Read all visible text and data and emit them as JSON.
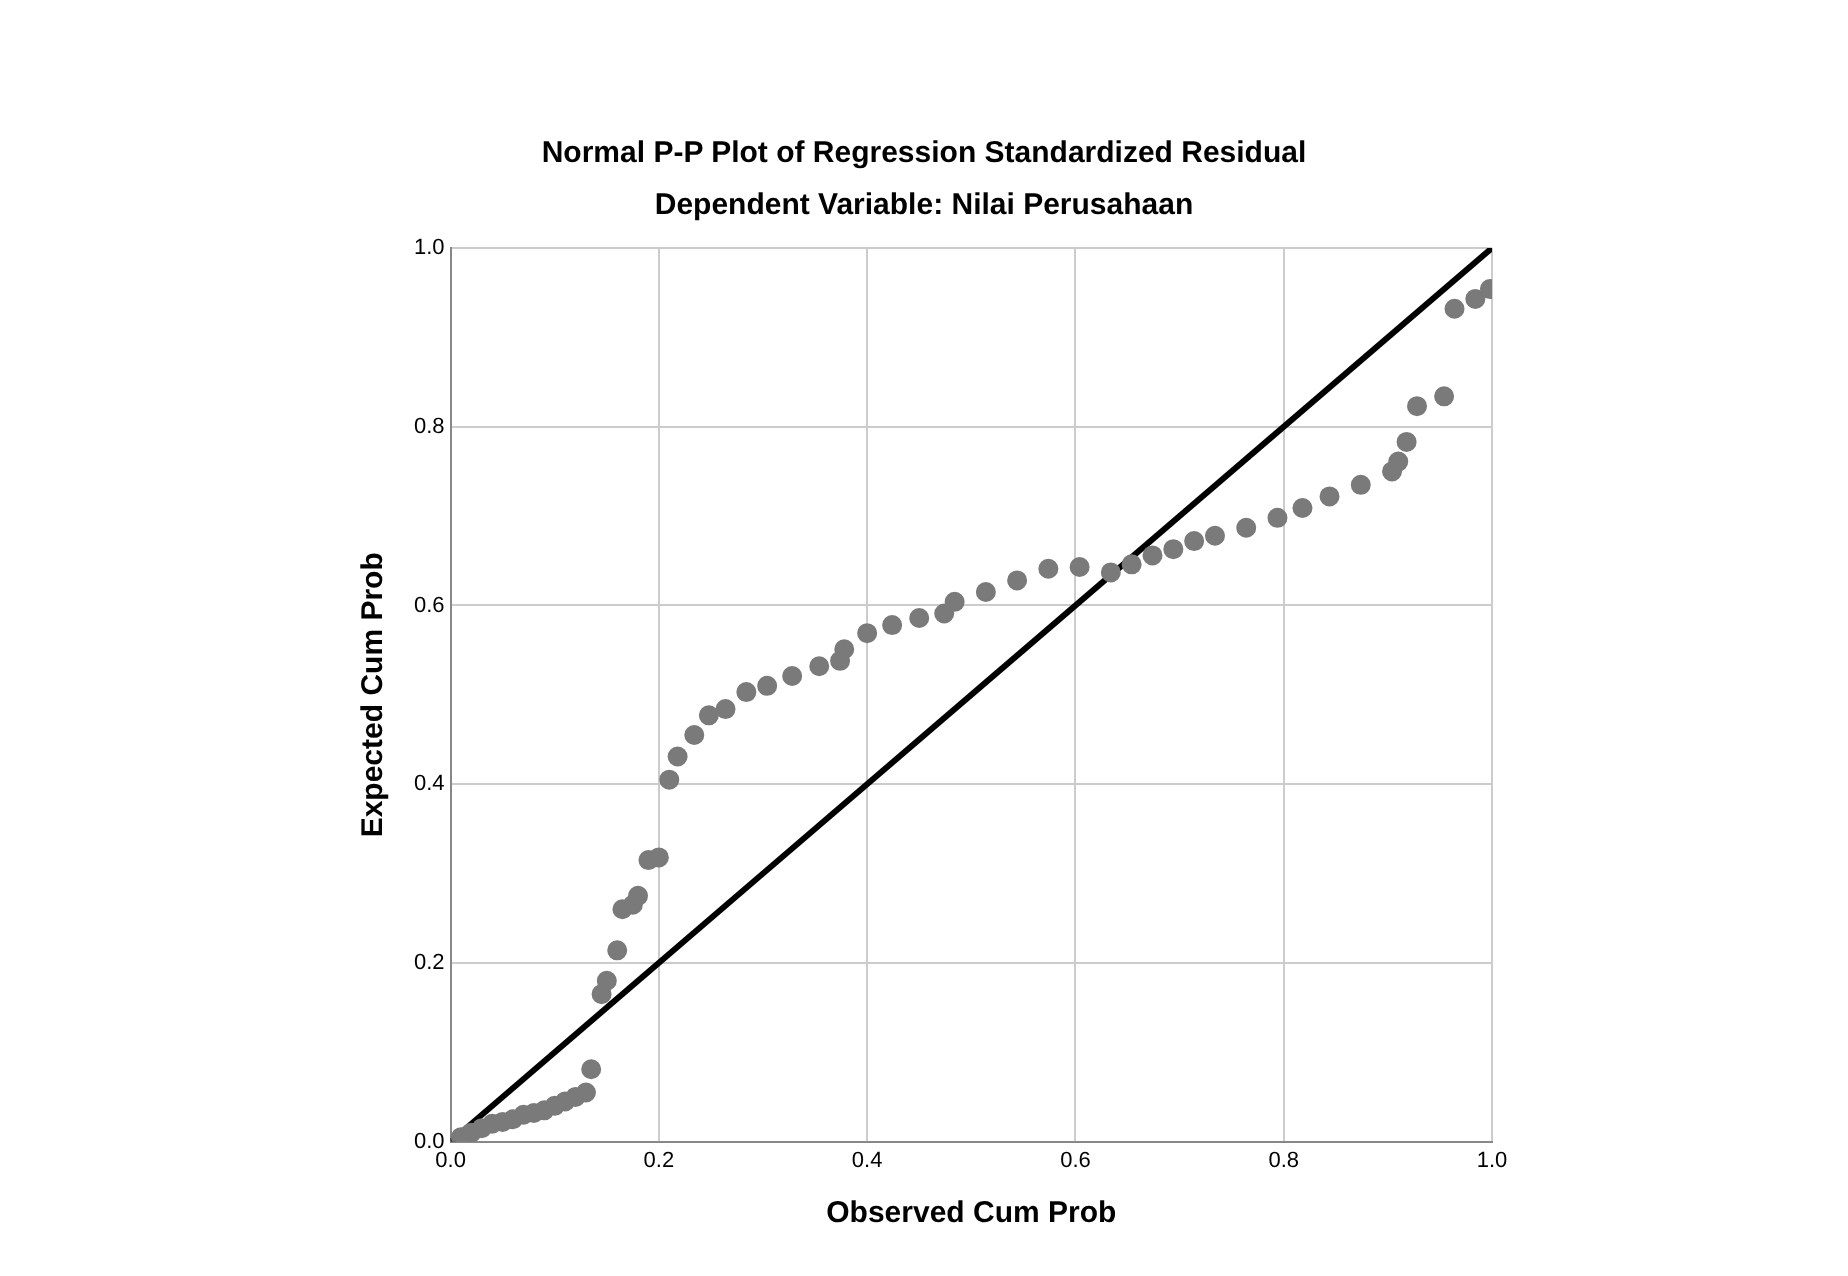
{
  "chart_data": {
    "type": "scatter",
    "title": "Normal P-P Plot of Regression Standardized Residual",
    "subtitle": "Dependent Variable: Nilai Perusahaan",
    "xlabel": "Observed Cum Prob",
    "ylabel": "Expected Cum Prob",
    "xlim": [
      0,
      1
    ],
    "ylim": [
      0,
      1
    ],
    "xticks": [
      {
        "value": 0,
        "label": "0.0"
      },
      {
        "value": 0.2,
        "label": "0.2"
      },
      {
        "value": 0.4,
        "label": "0.4"
      },
      {
        "value": 0.6,
        "label": "0.6"
      },
      {
        "value": 0.8,
        "label": "0.8"
      },
      {
        "value": 1,
        "label": "1.0"
      }
    ],
    "yticks": [
      {
        "value": 0,
        "label": "0.0"
      },
      {
        "value": 0.2,
        "label": "0.2"
      },
      {
        "value": 0.4,
        "label": "0.4"
      },
      {
        "value": 0.6,
        "label": "0.6"
      },
      {
        "value": 0.8,
        "label": "0.8"
      },
      {
        "value": 1,
        "label": "1.0"
      }
    ],
    "grid": true,
    "legend": false,
    "marker": "circle",
    "series": [
      {
        "color": "#7a7a7a",
        "x": [
          0.01,
          0.02,
          0.03,
          0.04,
          0.05,
          0.06,
          0.07,
          0.08,
          0.09,
          0.1,
          0.11,
          0.12,
          0.13,
          0.135,
          0.145,
          0.15,
          0.16,
          0.165,
          0.175,
          0.18,
          0.19,
          0.2,
          0.21,
          0.218,
          0.234,
          0.248,
          0.264,
          0.284,
          0.304,
          0.328,
          0.354,
          0.374,
          0.378,
          0.4,
          0.424,
          0.45,
          0.474,
          0.484,
          0.514,
          0.544,
          0.574,
          0.604,
          0.634,
          0.654,
          0.674,
          0.694,
          0.714,
          0.734,
          0.764,
          0.794,
          0.818,
          0.844,
          0.874,
          0.904,
          0.91,
          0.918,
          0.928,
          0.954,
          0.964,
          0.984,
          0.998
        ],
        "values": [
          0.005,
          0.01,
          0.015,
          0.02,
          0.022,
          0.025,
          0.03,
          0.032,
          0.035,
          0.04,
          0.045,
          0.05,
          0.055,
          0.081,
          0.165,
          0.18,
          0.214,
          0.26,
          0.265,
          0.275,
          0.315,
          0.318,
          0.405,
          0.431,
          0.455,
          0.477,
          0.484,
          0.503,
          0.51,
          0.521,
          0.532,
          0.538,
          0.551,
          0.569,
          0.578,
          0.586,
          0.591,
          0.604,
          0.615,
          0.628,
          0.641,
          0.643,
          0.637,
          0.646,
          0.656,
          0.663,
          0.672,
          0.678,
          0.687,
          0.698,
          0.709,
          0.722,
          0.735,
          0.75,
          0.761,
          0.783,
          0.823,
          0.834,
          0.932,
          0.943,
          0.954
        ]
      },
      {
        "type": "line",
        "color": "#000000",
        "marker": "none",
        "x": [
          0,
          1
        ],
        "values": [
          0,
          1
        ]
      }
    ]
  }
}
